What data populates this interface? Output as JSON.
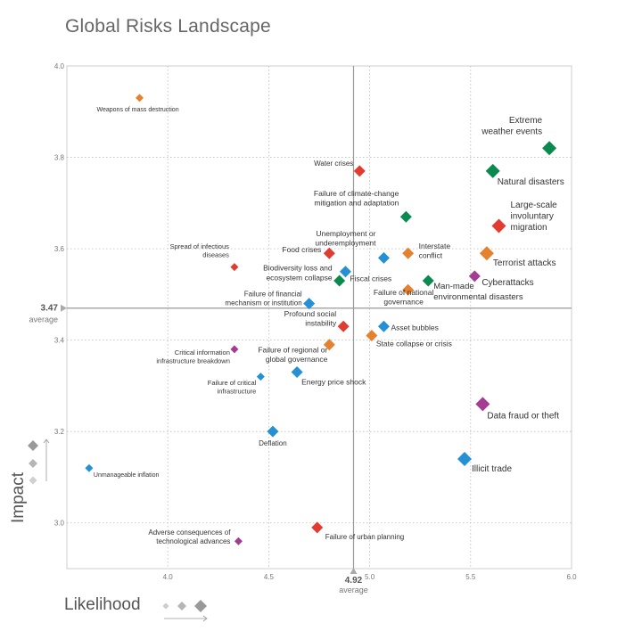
{
  "chart_data": {
    "type": "scatter",
    "title": "Global Risks Landscape",
    "xlabel": "Likelihood",
    "ylabel": "Impact",
    "xlim": [
      3.5,
      6.0
    ],
    "ylim": [
      2.9,
      4.0
    ],
    "xticks": [
      "4.0",
      "4.5",
      "5.0",
      "5.5",
      "6.0"
    ],
    "xtick_values": [
      4.0,
      4.5,
      5.0,
      5.5,
      6.0
    ],
    "yticks": [
      "3.0",
      "3.2",
      "3.4",
      "3.6",
      "3.8",
      "4.0"
    ],
    "ytick_values": [
      3.0,
      3.2,
      3.4,
      3.6,
      3.8,
      4.0
    ],
    "average_x": {
      "value": 4.92,
      "label": "4.92",
      "caption": "average"
    },
    "average_y": {
      "value": 3.47,
      "label": "3.47",
      "caption": "average"
    },
    "categories": {
      "economic": "#2590d3",
      "environmental": "#0a8a4e",
      "geopolitical": "#e4822f",
      "societal": "#e03c31",
      "technological": "#a23d93"
    },
    "points": [
      {
        "name": "Weapons of mass destruction",
        "x": 3.86,
        "y": 3.93,
        "cat": "geopolitical",
        "size": "small"
      },
      {
        "name": "Extreme weather events",
        "x": 5.89,
        "y": 3.82,
        "cat": "environmental",
        "size": "large"
      },
      {
        "name": "Natural disasters",
        "x": 5.61,
        "y": 3.77,
        "cat": "environmental",
        "size": "large"
      },
      {
        "name": "Water crises",
        "x": 4.95,
        "y": 3.77,
        "cat": "societal",
        "size": "medium"
      },
      {
        "name": "Failure of climate-change mitigation and adaptation",
        "x": 5.18,
        "y": 3.67,
        "cat": "environmental",
        "size": "medium"
      },
      {
        "name": "Large-scale involuntary migration",
        "x": 5.64,
        "y": 3.65,
        "cat": "societal",
        "size": "large"
      },
      {
        "name": "Food crises",
        "x": 4.8,
        "y": 3.59,
        "cat": "societal",
        "size": "medium"
      },
      {
        "name": "Unemployment or underemployment",
        "x": 5.07,
        "y": 3.58,
        "cat": "economic",
        "size": "medium"
      },
      {
        "name": "Interstate conflict",
        "x": 5.19,
        "y": 3.59,
        "cat": "geopolitical",
        "size": "medium"
      },
      {
        "name": "Terrorist attacks",
        "x": 5.58,
        "y": 3.59,
        "cat": "geopolitical",
        "size": "large"
      },
      {
        "name": "Spread of infectious diseases",
        "x": 4.33,
        "y": 3.56,
        "cat": "societal",
        "size": "small"
      },
      {
        "name": "Fiscal crises",
        "x": 4.88,
        "y": 3.55,
        "cat": "economic",
        "size": "medium"
      },
      {
        "name": "Biodiversity loss and ecosystem collapse",
        "x": 4.85,
        "y": 3.53,
        "cat": "environmental",
        "size": "medium"
      },
      {
        "name": "Man-made environmental disasters",
        "x": 5.29,
        "y": 3.53,
        "cat": "environmental",
        "size": "medium"
      },
      {
        "name": "Cyberattacks",
        "x": 5.52,
        "y": 3.54,
        "cat": "technological",
        "size": "medium"
      },
      {
        "name": "Failure of national governance",
        "x": 5.19,
        "y": 3.51,
        "cat": "geopolitical",
        "size": "medium"
      },
      {
        "name": "Failure of financial mechanism or institution",
        "x": 4.7,
        "y": 3.48,
        "cat": "economic",
        "size": "medium"
      },
      {
        "name": "Profound social instability",
        "x": 4.87,
        "y": 3.43,
        "cat": "societal",
        "size": "medium"
      },
      {
        "name": "Asset bubbles",
        "x": 5.07,
        "y": 3.43,
        "cat": "economic",
        "size": "medium"
      },
      {
        "name": "State collapse or crisis",
        "x": 5.01,
        "y": 3.41,
        "cat": "geopolitical",
        "size": "medium"
      },
      {
        "name": "Failure of regional or global governance",
        "x": 4.8,
        "y": 3.39,
        "cat": "geopolitical",
        "size": "medium"
      },
      {
        "name": "Critical information infrastructure breakdown",
        "x": 4.33,
        "y": 3.38,
        "cat": "technological",
        "size": "small"
      },
      {
        "name": "Energy price shock",
        "x": 4.64,
        "y": 3.33,
        "cat": "economic",
        "size": "medium"
      },
      {
        "name": "Failure of critical infrastructure",
        "x": 4.46,
        "y": 3.32,
        "cat": "economic",
        "size": "small"
      },
      {
        "name": "Data fraud or theft",
        "x": 5.56,
        "y": 3.26,
        "cat": "technological",
        "size": "large"
      },
      {
        "name": "Deflation",
        "x": 4.52,
        "y": 3.2,
        "cat": "economic",
        "size": "medium"
      },
      {
        "name": "Illicit trade",
        "x": 5.47,
        "y": 3.14,
        "cat": "economic",
        "size": "large"
      },
      {
        "name": "Unmanageable inflation",
        "x": 3.61,
        "y": 3.12,
        "cat": "economic",
        "size": "small"
      },
      {
        "name": "Failure of urban planning",
        "x": 4.74,
        "y": 2.99,
        "cat": "societal",
        "size": "medium"
      },
      {
        "name": "Adverse consequences of technological advances",
        "x": 4.35,
        "y": 2.96,
        "cat": "technological",
        "size": "small"
      }
    ]
  },
  "labels": {
    "Weapons of mass destruction": [
      "Weapons of mass destruction"
    ],
    "Extreme weather events": [
      "Extreme",
      "weather events"
    ],
    "Natural disasters": [
      "Natural disasters"
    ],
    "Water crises": [
      "Water crises"
    ],
    "Failure of climate-change mitigation and adaptation": [
      "Failure of climate-change",
      "mitigation and adaptation"
    ],
    "Large-scale involuntary migration": [
      "Large-scale",
      "involuntary",
      "migration"
    ],
    "Food crises": [
      "Food crises"
    ],
    "Unemployment or underemployment": [
      "Unemployment or",
      "underemployment"
    ],
    "Interstate conflict": [
      "Interstate",
      "conflict"
    ],
    "Terrorist attacks": [
      "Terrorist attacks"
    ],
    "Spread of infectious diseases": [
      "Spread of infectious",
      "diseases"
    ],
    "Fiscal crises": [
      "Fiscal crises"
    ],
    "Biodiversity loss and ecosystem collapse": [
      "Biodiversity loss and",
      "ecosystem collapse"
    ],
    "Man-made environmental disasters": [
      "Man-made",
      "environmental disasters"
    ],
    "Cyberattacks": [
      "Cyberattacks"
    ],
    "Failure of national governance": [
      "Failure of national",
      "governance"
    ],
    "Failure of financial mechanism or institution": [
      "Failure of financial",
      "mechanism or institution"
    ],
    "Profound social instability": [
      "Profound social",
      "instability"
    ],
    "Asset bubbles": [
      "Asset bubbles"
    ],
    "State collapse or crisis": [
      "State collapse or crisis"
    ],
    "Failure of regional or global governance": [
      "Failure of regional or",
      "global governance"
    ],
    "Critical information infrastructure breakdown": [
      "Critical information",
      "infrastructure breakdown"
    ],
    "Energy price shock": [
      "Energy price shock"
    ],
    "Failure of critical infrastructure": [
      "Failure of critical",
      "infrastructure"
    ],
    "Data fraud or theft": [
      "Data fraud or theft"
    ],
    "Deflation": [
      "Deflation"
    ],
    "Illicit trade": [
      "Illicit trade"
    ],
    "Unmanageable inflation": [
      "Unmanageable inflation"
    ],
    "Failure of urban planning": [
      "Failure of urban planning"
    ],
    "Adverse consequences of technological advances": [
      "Adverse consequences of",
      "technological advances"
    ]
  }
}
